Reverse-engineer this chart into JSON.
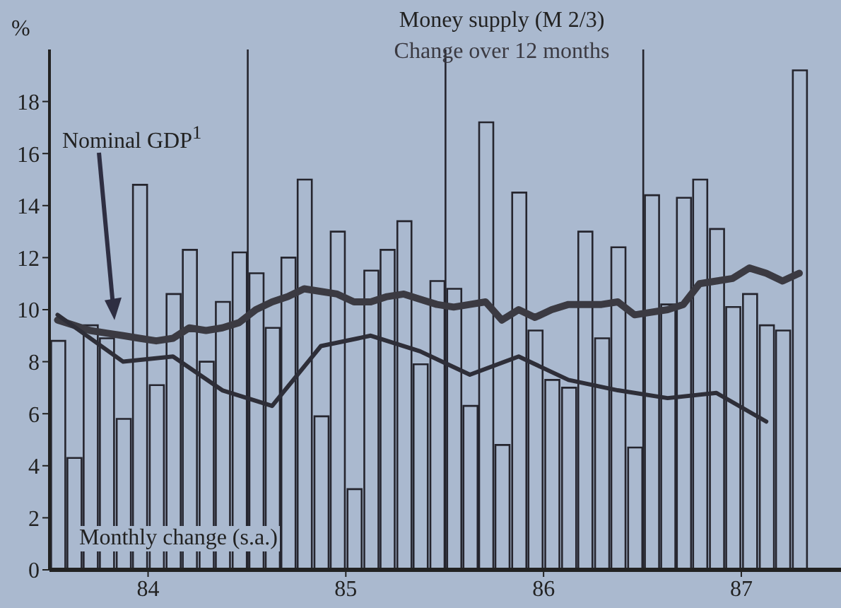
{
  "chart_data": {
    "type": "bar",
    "title": "Money supply (M 2/3)",
    "ylabel": "%",
    "x": [
      "1984-01-16",
      "1984-02-15",
      "1984-03-16",
      "1984-04-15",
      "1984-05-16",
      "1984-06-15",
      "1984-07-16",
      "1984-08-16",
      "1984-09-15",
      "1984-10-16",
      "1984-11-15",
      "1984-12-16",
      "1985-01-16",
      "1985-02-15",
      "1985-03-16",
      "1985-04-15",
      "1985-05-16",
      "1985-06-15",
      "1985-07-16",
      "1985-08-16",
      "1985-09-15",
      "1985-10-16",
      "1985-11-15",
      "1985-12-16",
      "1986-01-16",
      "1986-02-15",
      "1986-03-16",
      "1986-04-15",
      "1986-05-16",
      "1986-06-15",
      "1986-07-16",
      "1986-08-16",
      "1986-09-15",
      "1986-10-16",
      "1986-11-15",
      "1986-12-16",
      "1987-01-16",
      "1987-02-15",
      "1987-03-16",
      "1987-04-15",
      "1987-05-16",
      "1987-06-15",
      "1987-07-16",
      "1987-08-16",
      "1987-09-15",
      "1987-10-16"
    ],
    "series": [
      {
        "name": "Monthly change (s.a.)",
        "color": "#25252e",
        "values": [
          8.8,
          4.3,
          9.4,
          8.9,
          5.8,
          14.8,
          7.1,
          10.6,
          12.3,
          8.0,
          10.3,
          12.2,
          11.4,
          9.3,
          12.0,
          15.0,
          5.9,
          13.0,
          3.1,
          11.5,
          12.3,
          13.4,
          7.9,
          11.1,
          10.8,
          6.3,
          17.2,
          4.8,
          14.5,
          9.2,
          7.3,
          7.0,
          13.0,
          8.9,
          12.4,
          4.7,
          14.4,
          10.2,
          14.3,
          15.0,
          13.1,
          10.1,
          10.6,
          9.4,
          9.2,
          19.2
        ]
      },
      {
        "type": "line",
        "name": "Change over 12 months",
        "color": "#3b3a42",
        "values": [
          9.6,
          9.4,
          9.2,
          9.1,
          9.0,
          8.9,
          8.8,
          8.9,
          9.3,
          9.2,
          9.3,
          9.5,
          10.0,
          10.3,
          10.5,
          10.8,
          10.7,
          10.6,
          10.3,
          10.3,
          10.5,
          10.6,
          10.4,
          10.2,
          10.1,
          10.2,
          10.3,
          9.6,
          10.0,
          9.7,
          10.0,
          10.2,
          10.2,
          10.2,
          10.3,
          9.8,
          9.9,
          10.0,
          10.2,
          11.0,
          11.1,
          11.2,
          11.6,
          11.4,
          11.1,
          11.4
        ]
      },
      {
        "type": "line",
        "name": "Nominal GDP$^{1}$",
        "color": "#2e2e38",
        "x": [
          "1984-01-16",
          "1984-05-16",
          "1984-08-16",
          "1984-11-15",
          "1985-02-15",
          "1985-05-16",
          "1985-08-16",
          "1985-11-15",
          "1986-02-15",
          "1986-05-16",
          "1986-08-16",
          "1986-11-15",
          "1987-02-15",
          "1987-05-16",
          "1987-08-16"
        ],
        "values": [
          9.8,
          8.0,
          8.2,
          6.9,
          6.3,
          8.6,
          9.0,
          8.4,
          7.5,
          8.2,
          7.3,
          6.9,
          6.6,
          6.8,
          5.7
        ]
      }
    ],
    "xlim": [
      "1984-01-01",
      "1988-01-01"
    ],
    "xticks": [
      {
        "value": "1984-07-01",
        "label": "84"
      },
      {
        "value": "1985-07-01",
        "label": "85"
      },
      {
        "value": "1986-07-01",
        "label": "86"
      },
      {
        "value": "1987-07-01",
        "label": "87"
      }
    ],
    "ylim": [
      0,
      20
    ],
    "yticks": [
      0,
      2,
      4,
      6,
      8,
      10,
      12,
      14,
      16,
      18
    ],
    "ref_lines": [
      {
        "axis": "x",
        "value": "1985-01-01",
        "color": "#25252e"
      },
      {
        "axis": "x",
        "value": "1986-01-01",
        "color": "#25252e"
      },
      {
        "axis": "x",
        "value": "1987-01-01",
        "color": "#25252e"
      }
    ],
    "grid": false,
    "legend": false
  }
}
